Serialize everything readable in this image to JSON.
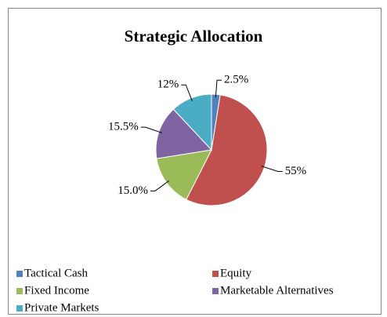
{
  "chart_data": {
    "type": "pie",
    "title": "Strategic Allocation",
    "categories": [
      "Tactical Cash",
      "Equity",
      "Fixed Income",
      "Marketable Alternatives",
      "Private Markets"
    ],
    "values": [
      2.5,
      55,
      15.0,
      15.5,
      12
    ],
    "value_labels": [
      "2.5%",
      "55%",
      "15.0%",
      "15.5%",
      "12%"
    ],
    "colors": [
      "#4f81bd",
      "#c0504d",
      "#9bbb59",
      "#8064a2",
      "#4bacc6"
    ],
    "legend": "bottom"
  }
}
